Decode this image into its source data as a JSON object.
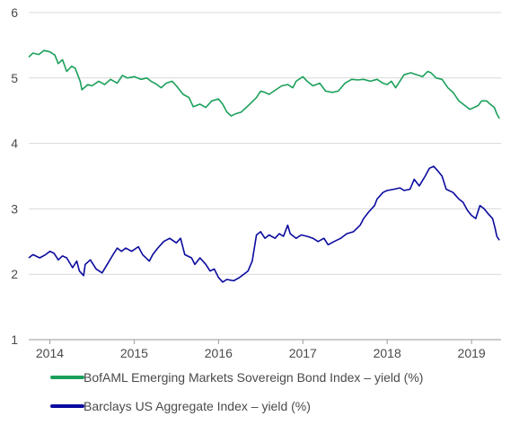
{
  "chart_data": {
    "type": "line",
    "title": "",
    "xlabel": "",
    "ylabel": "",
    "ylim": [
      1,
      6
    ],
    "y_ticks": [
      "1",
      "2",
      "3",
      "4",
      "5",
      "6"
    ],
    "x_ticks": [
      "2014",
      "2015",
      "2016",
      "2017",
      "2018",
      "2019"
    ],
    "xlim": [
      2013.75,
      2019.35
    ],
    "grid": "horizontal",
    "legend_position": "bottom",
    "series": [
      {
        "name": "BofAML Emerging Markets Sovereign Bond Index – yield (%)",
        "color": "#1aa05a",
        "points": [
          [
            2013.75,
            5.32
          ],
          [
            2013.8,
            5.38
          ],
          [
            2013.87,
            5.36
          ],
          [
            2013.93,
            5.42
          ],
          [
            2014.0,
            5.4
          ],
          [
            2014.06,
            5.35
          ],
          [
            2014.1,
            5.22
          ],
          [
            2014.15,
            5.28
          ],
          [
            2014.2,
            5.1
          ],
          [
            2014.26,
            5.18
          ],
          [
            2014.3,
            5.15
          ],
          [
            2014.36,
            4.95
          ],
          [
            2014.38,
            4.82
          ],
          [
            2014.45,
            4.9
          ],
          [
            2014.5,
            4.88
          ],
          [
            2014.58,
            4.95
          ],
          [
            2014.65,
            4.9
          ],
          [
            2014.72,
            4.98
          ],
          [
            2014.8,
            4.92
          ],
          [
            2014.86,
            5.04
          ],
          [
            2014.92,
            5.0
          ],
          [
            2015.0,
            5.02
          ],
          [
            2015.08,
            4.98
          ],
          [
            2015.15,
            5.0
          ],
          [
            2015.2,
            4.95
          ],
          [
            2015.27,
            4.9
          ],
          [
            2015.32,
            4.85
          ],
          [
            2015.38,
            4.92
          ],
          [
            2015.45,
            4.95
          ],
          [
            2015.5,
            4.88
          ],
          [
            2015.58,
            4.75
          ],
          [
            2015.65,
            4.7
          ],
          [
            2015.7,
            4.56
          ],
          [
            2015.78,
            4.6
          ],
          [
            2015.85,
            4.55
          ],
          [
            2015.92,
            4.65
          ],
          [
            2016.0,
            4.68
          ],
          [
            2016.05,
            4.6
          ],
          [
            2016.1,
            4.48
          ],
          [
            2016.15,
            4.42
          ],
          [
            2016.2,
            4.45
          ],
          [
            2016.27,
            4.48
          ],
          [
            2016.33,
            4.55
          ],
          [
            2016.37,
            4.6
          ],
          [
            2016.45,
            4.7
          ],
          [
            2016.5,
            4.8
          ],
          [
            2016.55,
            4.78
          ],
          [
            2016.6,
            4.75
          ],
          [
            2016.68,
            4.82
          ],
          [
            2016.75,
            4.88
          ],
          [
            2016.82,
            4.9
          ],
          [
            2016.88,
            4.85
          ],
          [
            2016.92,
            4.95
          ],
          [
            2017.0,
            5.02
          ],
          [
            2017.05,
            4.95
          ],
          [
            2017.12,
            4.88
          ],
          [
            2017.2,
            4.92
          ],
          [
            2017.27,
            4.8
          ],
          [
            2017.35,
            4.78
          ],
          [
            2017.42,
            4.8
          ],
          [
            2017.5,
            4.92
          ],
          [
            2017.58,
            4.98
          ],
          [
            2017.65,
            4.97
          ],
          [
            2017.72,
            4.98
          ],
          [
            2017.8,
            4.95
          ],
          [
            2017.88,
            4.98
          ],
          [
            2017.95,
            4.92
          ],
          [
            2018.0,
            4.9
          ],
          [
            2018.05,
            4.95
          ],
          [
            2018.1,
            4.85
          ],
          [
            2018.15,
            4.95
          ],
          [
            2018.2,
            5.05
          ],
          [
            2018.28,
            5.08
          ],
          [
            2018.35,
            5.05
          ],
          [
            2018.42,
            5.02
          ],
          [
            2018.48,
            5.1
          ],
          [
            2018.52,
            5.08
          ],
          [
            2018.58,
            5.0
          ],
          [
            2018.65,
            4.98
          ],
          [
            2018.72,
            4.85
          ],
          [
            2018.78,
            4.78
          ],
          [
            2018.85,
            4.65
          ],
          [
            2018.92,
            4.58
          ],
          [
            2018.98,
            4.52
          ],
          [
            2019.03,
            4.55
          ],
          [
            2019.08,
            4.58
          ],
          [
            2019.12,
            4.65
          ],
          [
            2019.18,
            4.65
          ],
          [
            2019.22,
            4.6
          ],
          [
            2019.27,
            4.55
          ],
          [
            2019.3,
            4.45
          ],
          [
            2019.33,
            4.38
          ]
        ]
      },
      {
        "name": "Barclays US Aggregate Index – yield (%)",
        "color": "#0a0a9e",
        "points": [
          [
            2013.75,
            2.25
          ],
          [
            2013.8,
            2.3
          ],
          [
            2013.88,
            2.25
          ],
          [
            2013.95,
            2.3
          ],
          [
            2014.0,
            2.35
          ],
          [
            2014.05,
            2.32
          ],
          [
            2014.1,
            2.22
          ],
          [
            2014.15,
            2.28
          ],
          [
            2014.2,
            2.25
          ],
          [
            2014.27,
            2.1
          ],
          [
            2014.32,
            2.2
          ],
          [
            2014.35,
            2.05
          ],
          [
            2014.4,
            1.98
          ],
          [
            2014.42,
            2.15
          ],
          [
            2014.48,
            2.22
          ],
          [
            2014.55,
            2.08
          ],
          [
            2014.62,
            2.02
          ],
          [
            2014.68,
            2.15
          ],
          [
            2014.75,
            2.3
          ],
          [
            2014.8,
            2.4
          ],
          [
            2014.85,
            2.35
          ],
          [
            2014.9,
            2.4
          ],
          [
            2014.97,
            2.35
          ],
          [
            2015.05,
            2.42
          ],
          [
            2015.1,
            2.3
          ],
          [
            2015.18,
            2.2
          ],
          [
            2015.22,
            2.3
          ],
          [
            2015.28,
            2.4
          ],
          [
            2015.35,
            2.5
          ],
          [
            2015.42,
            2.55
          ],
          [
            2015.5,
            2.48
          ],
          [
            2015.55,
            2.55
          ],
          [
            2015.6,
            2.3
          ],
          [
            2015.68,
            2.25
          ],
          [
            2015.72,
            2.15
          ],
          [
            2015.78,
            2.25
          ],
          [
            2015.85,
            2.15
          ],
          [
            2015.9,
            2.05
          ],
          [
            2015.95,
            2.08
          ],
          [
            2016.0,
            1.95
          ],
          [
            2016.05,
            1.88
          ],
          [
            2016.1,
            1.92
          ],
          [
            2016.18,
            1.9
          ],
          [
            2016.25,
            1.95
          ],
          [
            2016.3,
            2.0
          ],
          [
            2016.35,
            2.05
          ],
          [
            2016.4,
            2.2
          ],
          [
            2016.45,
            2.6
          ],
          [
            2016.5,
            2.65
          ],
          [
            2016.55,
            2.55
          ],
          [
            2016.6,
            2.6
          ],
          [
            2016.67,
            2.55
          ],
          [
            2016.72,
            2.62
          ],
          [
            2016.77,
            2.58
          ],
          [
            2016.82,
            2.75
          ],
          [
            2016.85,
            2.62
          ],
          [
            2016.92,
            2.55
          ],
          [
            2016.98,
            2.6
          ],
          [
            2017.05,
            2.58
          ],
          [
            2017.12,
            2.55
          ],
          [
            2017.18,
            2.5
          ],
          [
            2017.25,
            2.55
          ],
          [
            2017.3,
            2.45
          ],
          [
            2017.37,
            2.5
          ],
          [
            2017.45,
            2.55
          ],
          [
            2017.52,
            2.62
          ],
          [
            2017.6,
            2.65
          ],
          [
            2017.68,
            2.75
          ],
          [
            2017.72,
            2.85
          ],
          [
            2017.78,
            2.95
          ],
          [
            2017.85,
            3.05
          ],
          [
            2017.88,
            3.15
          ],
          [
            2017.95,
            3.25
          ],
          [
            2018.0,
            3.28
          ],
          [
            2018.08,
            3.3
          ],
          [
            2018.15,
            3.32
          ],
          [
            2018.2,
            3.28
          ],
          [
            2018.27,
            3.3
          ],
          [
            2018.32,
            3.45
          ],
          [
            2018.38,
            3.35
          ],
          [
            2018.45,
            3.5
          ],
          [
            2018.5,
            3.62
          ],
          [
            2018.55,
            3.65
          ],
          [
            2018.6,
            3.58
          ],
          [
            2018.65,
            3.5
          ],
          [
            2018.7,
            3.3
          ],
          [
            2018.78,
            3.25
          ],
          [
            2018.85,
            3.15
          ],
          [
            2018.9,
            3.1
          ],
          [
            2018.95,
            2.98
          ],
          [
            2019.0,
            2.9
          ],
          [
            2019.05,
            2.85
          ],
          [
            2019.1,
            3.05
          ],
          [
            2019.15,
            3.0
          ],
          [
            2019.2,
            2.92
          ],
          [
            2019.25,
            2.85
          ],
          [
            2019.28,
            2.7
          ],
          [
            2019.3,
            2.58
          ],
          [
            2019.33,
            2.52
          ]
        ]
      }
    ]
  }
}
